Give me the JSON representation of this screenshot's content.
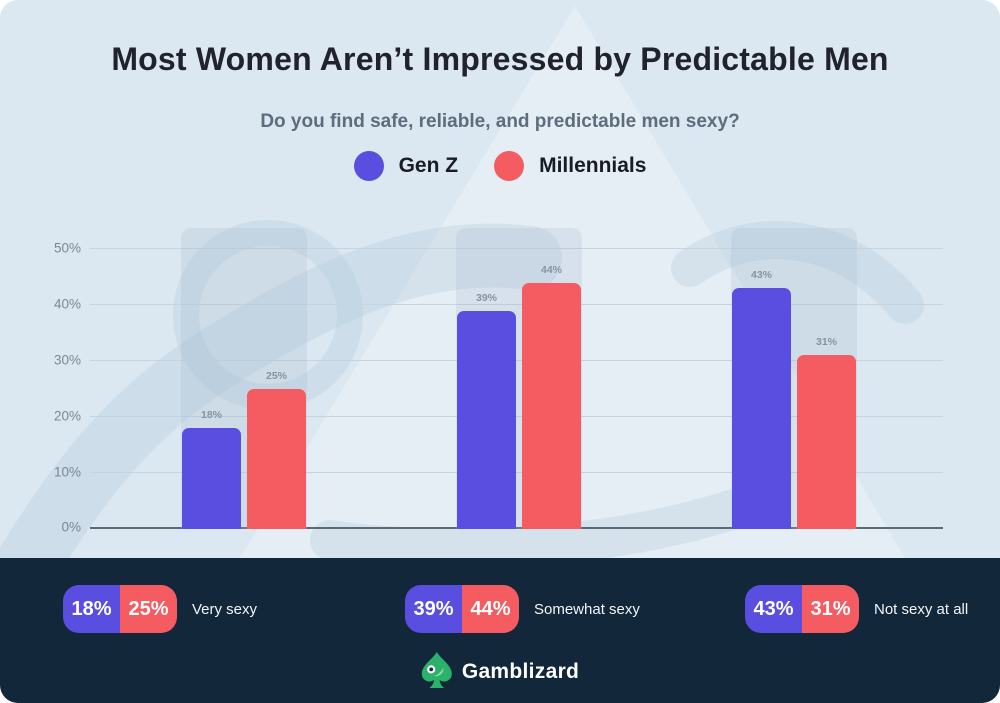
{
  "title": "Most Women Aren’t Impressed by Predictable Men",
  "subtitle": "Do you find safe, reliable, and predictable men sexy?",
  "legend": [
    {
      "label": "Gen Z",
      "color": "#5a4ee1"
    },
    {
      "label": "Millennials",
      "color": "#f55c61"
    }
  ],
  "chart_data": {
    "type": "bar",
    "categories": [
      "Very sexy",
      "Somewhat sexy",
      "Not sexy at all"
    ],
    "series": [
      {
        "name": "Gen Z",
        "color": "#5a4ee1",
        "values": [
          18,
          39,
          43
        ]
      },
      {
        "name": "Millennials",
        "color": "#f55c61",
        "values": [
          25,
          44,
          31
        ]
      }
    ],
    "yticks": [
      "0%",
      "10%",
      "20%",
      "30%",
      "40%",
      "50%"
    ],
    "ylim": [
      0,
      53.75
    ],
    "grid": true,
    "value_suffix": "%",
    "legend_position": "top",
    "title": "Most Women Aren’t Impressed by Predictable Men",
    "xlabel": "",
    "ylabel": ""
  },
  "summary": [
    {
      "genz": "18%",
      "millennials": "25%",
      "label": "Very sexy"
    },
    {
      "genz": "39%",
      "millennials": "44%",
      "label": "Somewhat sexy"
    },
    {
      "genz": "43%",
      "millennials": "31%",
      "label": "Not sexy at all"
    }
  ],
  "footer": {
    "brand": "Gamblizard",
    "logo_color": "#2bb169"
  },
  "colors": {
    "card_background": "#dbe7f1",
    "panel_background": "#13273a",
    "genz": "#5a4ee1",
    "millennials": "#f55c61",
    "gridline": "#c7d3dd",
    "baseline": "#5d6974",
    "title_text": "#20222c",
    "subtitle_text": "#5d6d7d"
  }
}
